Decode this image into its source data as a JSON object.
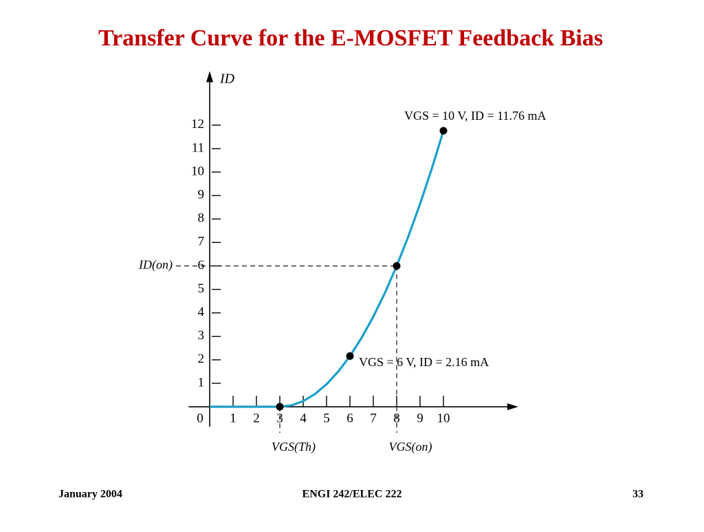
{
  "chart_data": {
    "type": "line",
    "title": "Transfer Curve for the E-MOSFET Feedback Bias",
    "ylabel": "ID",
    "x": [
      0,
      3,
      3.5,
      4,
      4.5,
      5,
      5.5,
      6,
      6.5,
      7,
      7.5,
      8,
      8.5,
      9,
      9.5,
      10
    ],
    "values": [
      0,
      0,
      0.06,
      0.24,
      0.54,
      0.96,
      1.5,
      2.16,
      2.94,
      3.84,
      4.86,
      6,
      7.26,
      8.64,
      10.14,
      11.76
    ],
    "color": "#1a9fc9",
    "markers": {
      "x": [
        3,
        6,
        8,
        10
      ],
      "values": [
        0,
        2.16,
        6,
        11.76
      ],
      "color": "#000000"
    },
    "xlim": [
      -0.9,
      13.2
    ],
    "ylim": [
      -0.85,
      14.3
    ],
    "xticks": [
      0,
      1,
      2,
      3,
      4,
      5,
      6,
      7,
      8,
      9,
      10
    ],
    "yticks": [
      1,
      2,
      3,
      4,
      5,
      6,
      7,
      8,
      9,
      10,
      11,
      12
    ],
    "reference_lines": [
      {
        "axis": "y",
        "value": 6,
        "label": "ID(on)"
      },
      {
        "axis": "x",
        "value": 8,
        "label": "VGS(on)"
      },
      {
        "axis": "x",
        "value": 3,
        "label": "VGS(Th)"
      }
    ],
    "annotations": [
      "VGS = 10 V, ID = 11.76 mA",
      "VGS = 6 V, ID = 2.16 mA"
    ]
  },
  "footer": {
    "left": "January 2004",
    "center": "ENGI 242/ELEC 222",
    "right": "33"
  }
}
